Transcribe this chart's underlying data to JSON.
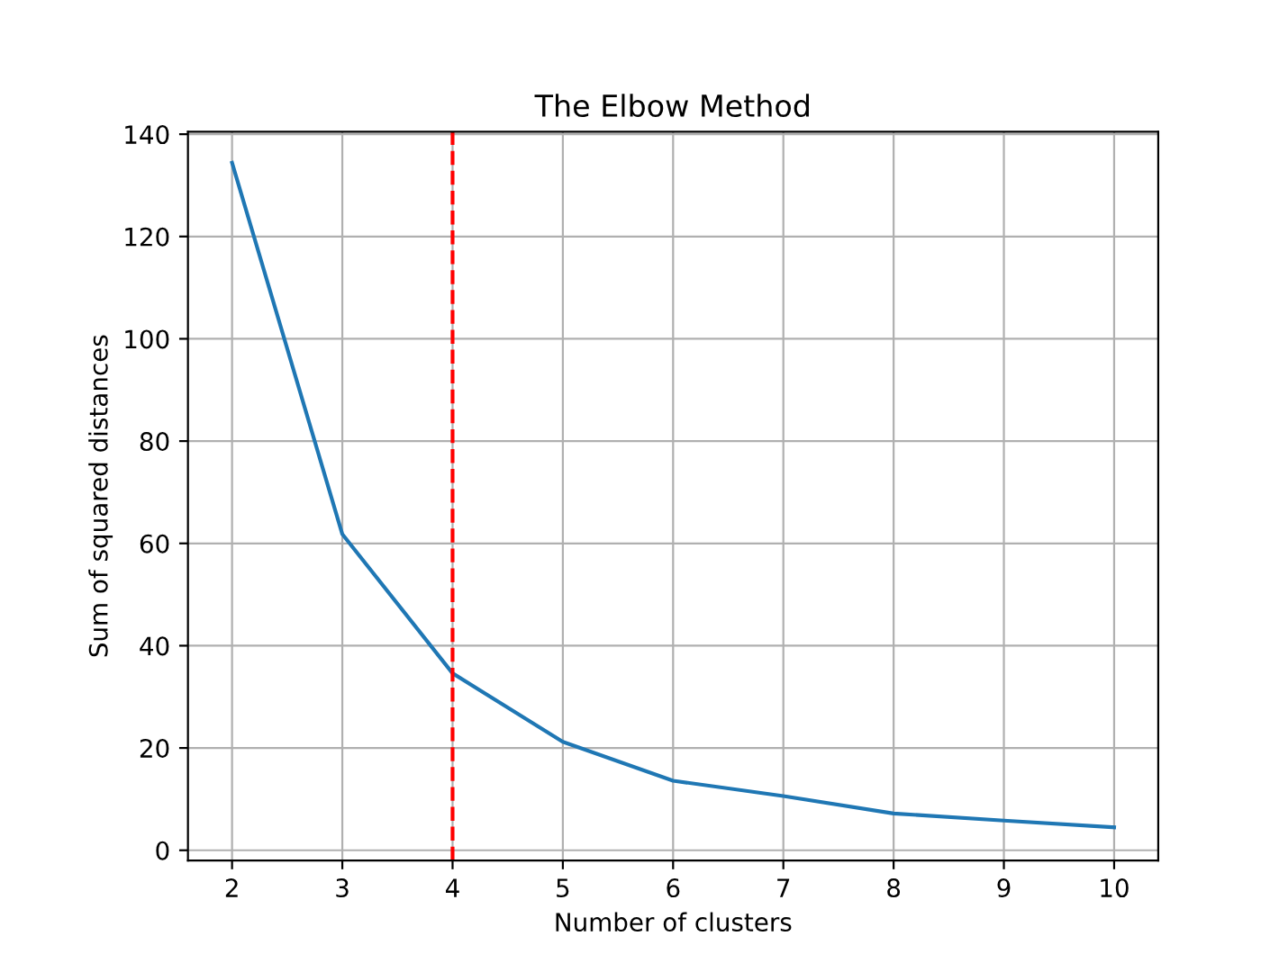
{
  "chart_data": {
    "type": "line",
    "title": "The Elbow Method",
    "xlabel": "Number of clusters",
    "ylabel": "Sum of squared distances",
    "x": [
      2,
      3,
      4,
      5,
      6,
      7,
      8,
      9,
      10
    ],
    "series": [
      {
        "color": "#1f77b4",
        "values": [
          134.4,
          61.8,
          34.6,
          21.2,
          13.6,
          10.6,
          7.2,
          5.8,
          4.5
        ]
      }
    ],
    "xlim": [
      1.6,
      10.4
    ],
    "xticks": [
      2,
      3,
      4,
      5,
      6,
      7,
      8,
      9,
      10
    ],
    "ylim": [
      -2,
      140.5
    ],
    "yticks": [
      0,
      20,
      40,
      60,
      80,
      100,
      120,
      140
    ],
    "grid": true,
    "marker": "none",
    "line_style": "solid",
    "ref_lines": [
      {
        "axis": "x",
        "value": 4,
        "color": "#ff0000",
        "line_style": "dashed"
      }
    ]
  }
}
